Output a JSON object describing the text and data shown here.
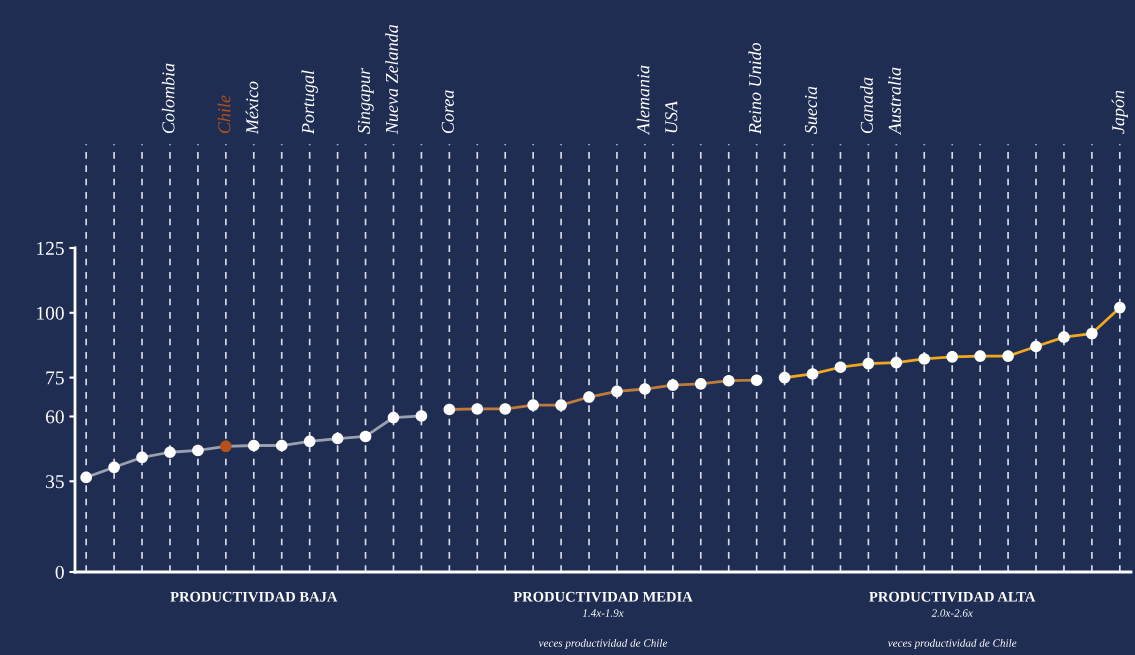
{
  "chart_data": {
    "type": "line",
    "categories": [
      null,
      null,
      null,
      "Colombia",
      null,
      "Chile",
      "México",
      null,
      "Portugal",
      null,
      "Singapur",
      "Nueva Zelanda",
      null,
      "Corea",
      null,
      null,
      null,
      null,
      null,
      null,
      "Alemania",
      "USA",
      null,
      null,
      "Reino Unido",
      null,
      "Suecia",
      null,
      "Canada",
      "Australia",
      null,
      null,
      null,
      null,
      null,
      null,
      null,
      "Japón"
    ],
    "series": [
      {
        "color": "#9aa0ae",
        "values": [
          36.5,
          40.4,
          44.2,
          46.2,
          46.9,
          48.5,
          48.8,
          48.8,
          50.4,
          51.5,
          52.3,
          59.6,
          60.2,
          null,
          null,
          null,
          null,
          null,
          null,
          null,
          null,
          null,
          null,
          null,
          null,
          null,
          null,
          null,
          null,
          null,
          null,
          null,
          null,
          null,
          null,
          null,
          null,
          null
        ],
        "colors": [
          "#ffffff",
          "#ffffff",
          "#ffffff",
          "#ffffff",
          "#ffffff",
          "#b5521b",
          "#ffffff",
          "#ffffff",
          "#ffffff",
          "#ffffff",
          "#ffffff",
          "#ffffff",
          "#ffffff",
          null,
          null,
          null,
          null,
          null,
          null,
          null,
          null,
          null,
          null,
          null,
          null,
          null,
          null,
          null,
          null,
          null,
          null,
          null,
          null,
          null,
          null,
          null,
          null,
          null
        ]
      },
      {
        "color": "#c07a3a",
        "values": [
          null,
          null,
          null,
          null,
          null,
          null,
          null,
          null,
          null,
          null,
          null,
          null,
          null,
          62.7,
          62.9,
          62.9,
          64.4,
          64.4,
          67.5,
          69.7,
          70.6,
          72.1,
          72.6,
          73.8,
          74.0,
          null,
          null,
          null,
          null,
          null,
          null,
          null,
          null,
          null,
          null,
          null,
          null,
          null
        ],
        "colors": [
          null,
          null,
          null,
          null,
          null,
          null,
          null,
          null,
          null,
          null,
          null,
          null,
          null,
          "#ffffff",
          "#ffffff",
          "#ffffff",
          "#ffffff",
          "#ffffff",
          "#ffffff",
          "#ffffff",
          "#ffffff",
          "#ffffff",
          "#ffffff",
          "#ffffff",
          "#ffffff",
          null,
          null,
          null,
          null,
          null,
          null,
          null,
          null,
          null,
          null,
          null,
          null,
          null
        ]
      },
      {
        "color": "#f0a81e",
        "values": [
          null,
          null,
          null,
          null,
          null,
          null,
          null,
          null,
          null,
          null,
          null,
          null,
          null,
          null,
          null,
          null,
          null,
          null,
          null,
          null,
          null,
          null,
          null,
          null,
          null,
          75.0,
          76.4,
          79.0,
          80.4,
          80.8,
          82.2,
          83.0,
          83.3,
          83.3,
          87.0,
          90.6,
          92.0,
          102.0
        ],
        "colors": [
          null,
          null,
          null,
          null,
          null,
          null,
          null,
          null,
          null,
          null,
          null,
          null,
          null,
          null,
          null,
          null,
          null,
          null,
          null,
          null,
          null,
          null,
          null,
          null,
          null,
          "#ffffff",
          "#ffffff",
          "#ffffff",
          "#ffffff",
          "#ffffff",
          "#ffffff",
          "#ffffff",
          "#ffffff",
          "#ffffff",
          "#ffffff",
          "#ffffff",
          "#ffffff",
          "#ffffff"
        ]
      }
    ],
    "ylim": [
      0,
      125
    ],
    "yticks": [
      0,
      35,
      60,
      75,
      100,
      125
    ],
    "grid": "x",
    "marker": "circle",
    "line_style": "solid",
    "annotations": [
      "PRODUCTIVIDAD BAJA",
      "PRODUCTIVIDAD MEDIA",
      "1.4x-1.9x",
      "veces productividad de Chile",
      "PRODUCTIVIDAD ALTA",
      "2.0x-2.6x",
      "veces productividad de Chile"
    ]
  }
}
